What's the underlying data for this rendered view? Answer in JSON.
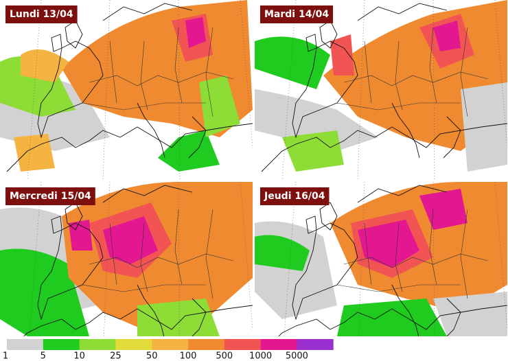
{
  "panels": [
    {
      "title": "Lundi 13/04"
    },
    {
      "title": "Mardi 14/04"
    },
    {
      "title": "Mercredi 15/04"
    },
    {
      "title": "Jeudi 16/04"
    }
  ],
  "legend": {
    "labels": [
      1,
      5,
      10,
      25,
      50,
      100,
      500,
      1000,
      5000
    ],
    "colors": [
      "#d2d2d2",
      "#1ecb1e",
      "#8edc36",
      "#e3dc3a",
      "#f5b342",
      "#f08a30",
      "#f25454",
      "#e3178f",
      "#9b30d0"
    ]
  }
}
